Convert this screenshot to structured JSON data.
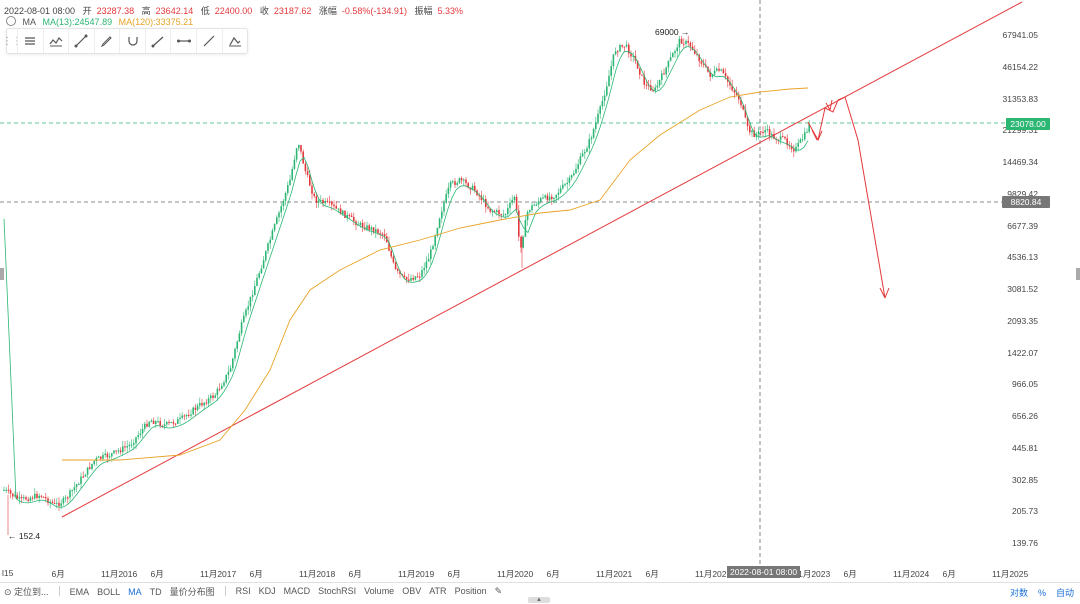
{
  "header": {
    "date": "2022-08-01 08:00",
    "open_label": "开",
    "open_value": "23287.38",
    "high_label": "高",
    "high_value": "23642.14",
    "low_label": "低",
    "low_value": "22400.00",
    "close_label": "收",
    "close_value": "23187.62",
    "change_label": "涨幅",
    "change_value": "-0.58%(-134.91)",
    "amplitude_label": "振幅",
    "amplitude_value": "5.33%",
    "ma_label": "MA",
    "ma13_label": "MA(13):24547.89",
    "ma120_label": "MA(120):33375.21"
  },
  "toolbar": {
    "grip_icon": "grip-icon",
    "tools": [
      "horizontal-lines-icon",
      "candles-pattern-icon",
      "trend-line-icon",
      "pen-icon",
      "arc-icon",
      "ray-icon",
      "measure-icon",
      "line-segment-icon",
      "brush-icon"
    ]
  },
  "price_axis": {
    "labels": [
      "67941.05",
      "46154.22",
      "31353.83",
      "21299.31",
      "14469.34",
      "9829.42",
      "6677.39",
      "4536.13",
      "3081.52",
      "2093.35",
      "1422.07",
      "966.05",
      "656.26",
      "445.81",
      "302.85",
      "205.73",
      "139.76"
    ],
    "current_price": "23078.00",
    "cross_price": "8820.84",
    "plus_symbol": "+"
  },
  "annotations": {
    "ath": "69000 →",
    "low": "← 152.4"
  },
  "time_axis": {
    "labels": [
      "l15",
      "6月",
      "11月2016",
      "6月",
      "11月2017",
      "6月",
      "11月2018",
      "6月",
      "11月2019",
      "6月",
      "11月2020",
      "6月",
      "11月2021",
      "6月",
      "11月2022",
      "6月",
      "11月2023",
      "6月",
      "11月2024",
      "6月",
      "11月2025"
    ],
    "cross_label": "2022-08-01 08:00"
  },
  "bottom_bar": {
    "locate": "定位到...",
    "overlay_indicators": [
      "EMA",
      "BOLL",
      "MA",
      "TD",
      "量价分布图"
    ],
    "active_overlay": "MA",
    "sub_indicators": [
      "RSI",
      "KDJ",
      "MACD",
      "StochRSI",
      "Volume",
      "OBV",
      "ATR",
      "Position"
    ],
    "right_items": [
      "对数",
      "%",
      "自动"
    ]
  },
  "colors": {
    "up": "#2bb673",
    "down": "#e4393c",
    "ma13": "#2bb673",
    "ma120": "#e8a326",
    "trend": "#e4393c"
  }
}
